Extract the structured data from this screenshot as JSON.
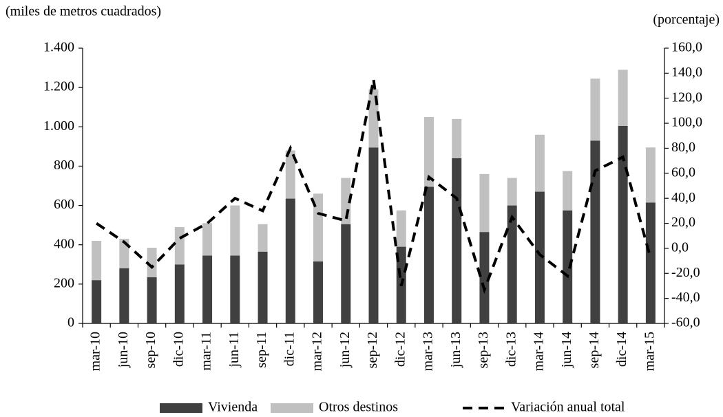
{
  "chart_data": {
    "type": "bar",
    "y_label": "(miles  de metros cuadrados)",
    "y2_label": "(porcentaje)",
    "categories": [
      "mar-10",
      "jun-10",
      "sep-10",
      "dic-10",
      "mar-11",
      "jun-11",
      "sep-11",
      "dic-11",
      "mar-12",
      "jun-12",
      "sep-12",
      "dic-12",
      "mar-13",
      "jun-13",
      "sep-13",
      "dic-13",
      "mar-14",
      "jun-14",
      "sep-14",
      "dic-14",
      "mar-15"
    ],
    "series": [
      {
        "name": "Vivienda",
        "color": "#404040",
        "values": [
          220,
          280,
          235,
          300,
          345,
          345,
          365,
          635,
          315,
          505,
          895,
          390,
          695,
          840,
          465,
          600,
          670,
          575,
          930,
          1005,
          615
        ]
      },
      {
        "name": "Otros destinos",
        "color": "#c0c0c0",
        "values": [
          200,
          150,
          150,
          190,
          165,
          255,
          140,
          245,
          345,
          235,
          295,
          185,
          355,
          200,
          295,
          140,
          290,
          200,
          315,
          285,
          280
        ]
      },
      {
        "name": "Variación anual total",
        "color": "#000000",
        "type": "line",
        "axis": "y2",
        "values": [
          20,
          5,
          -15,
          8,
          20,
          40,
          30,
          80,
          28,
          22,
          135,
          -30,
          57,
          40,
          -33,
          25,
          -5,
          -22,
          62,
          73,
          -8
        ]
      }
    ],
    "ylim": [
      0,
      1400
    ],
    "yticks": [
      0,
      200,
      400,
      600,
      800,
      {
        "value": 1000,
        "label": "1.000"
      },
      {
        "value": 1200,
        "label": "1.200"
      },
      {
        "value": 1400,
        "label": "1.400"
      }
    ],
    "y2lim": [
      -60,
      160
    ],
    "y2ticks": [
      {
        "value": -60,
        "label": "-60,0"
      },
      {
        "value": -40,
        "label": "-40,0"
      },
      {
        "value": -20,
        "label": "-20,0"
      },
      {
        "value": 0,
        "label": "0,0"
      },
      {
        "value": 20,
        "label": "20,0"
      },
      {
        "value": 40,
        "label": "40,0"
      },
      {
        "value": 60,
        "label": "60,0"
      },
      {
        "value": 80,
        "label": "80,0"
      },
      {
        "value": 100,
        "label": "100,0"
      },
      {
        "value": 120,
        "label": "120,0"
      },
      {
        "value": 140,
        "label": "140,0"
      },
      {
        "value": 160,
        "label": "160,0"
      }
    ]
  }
}
